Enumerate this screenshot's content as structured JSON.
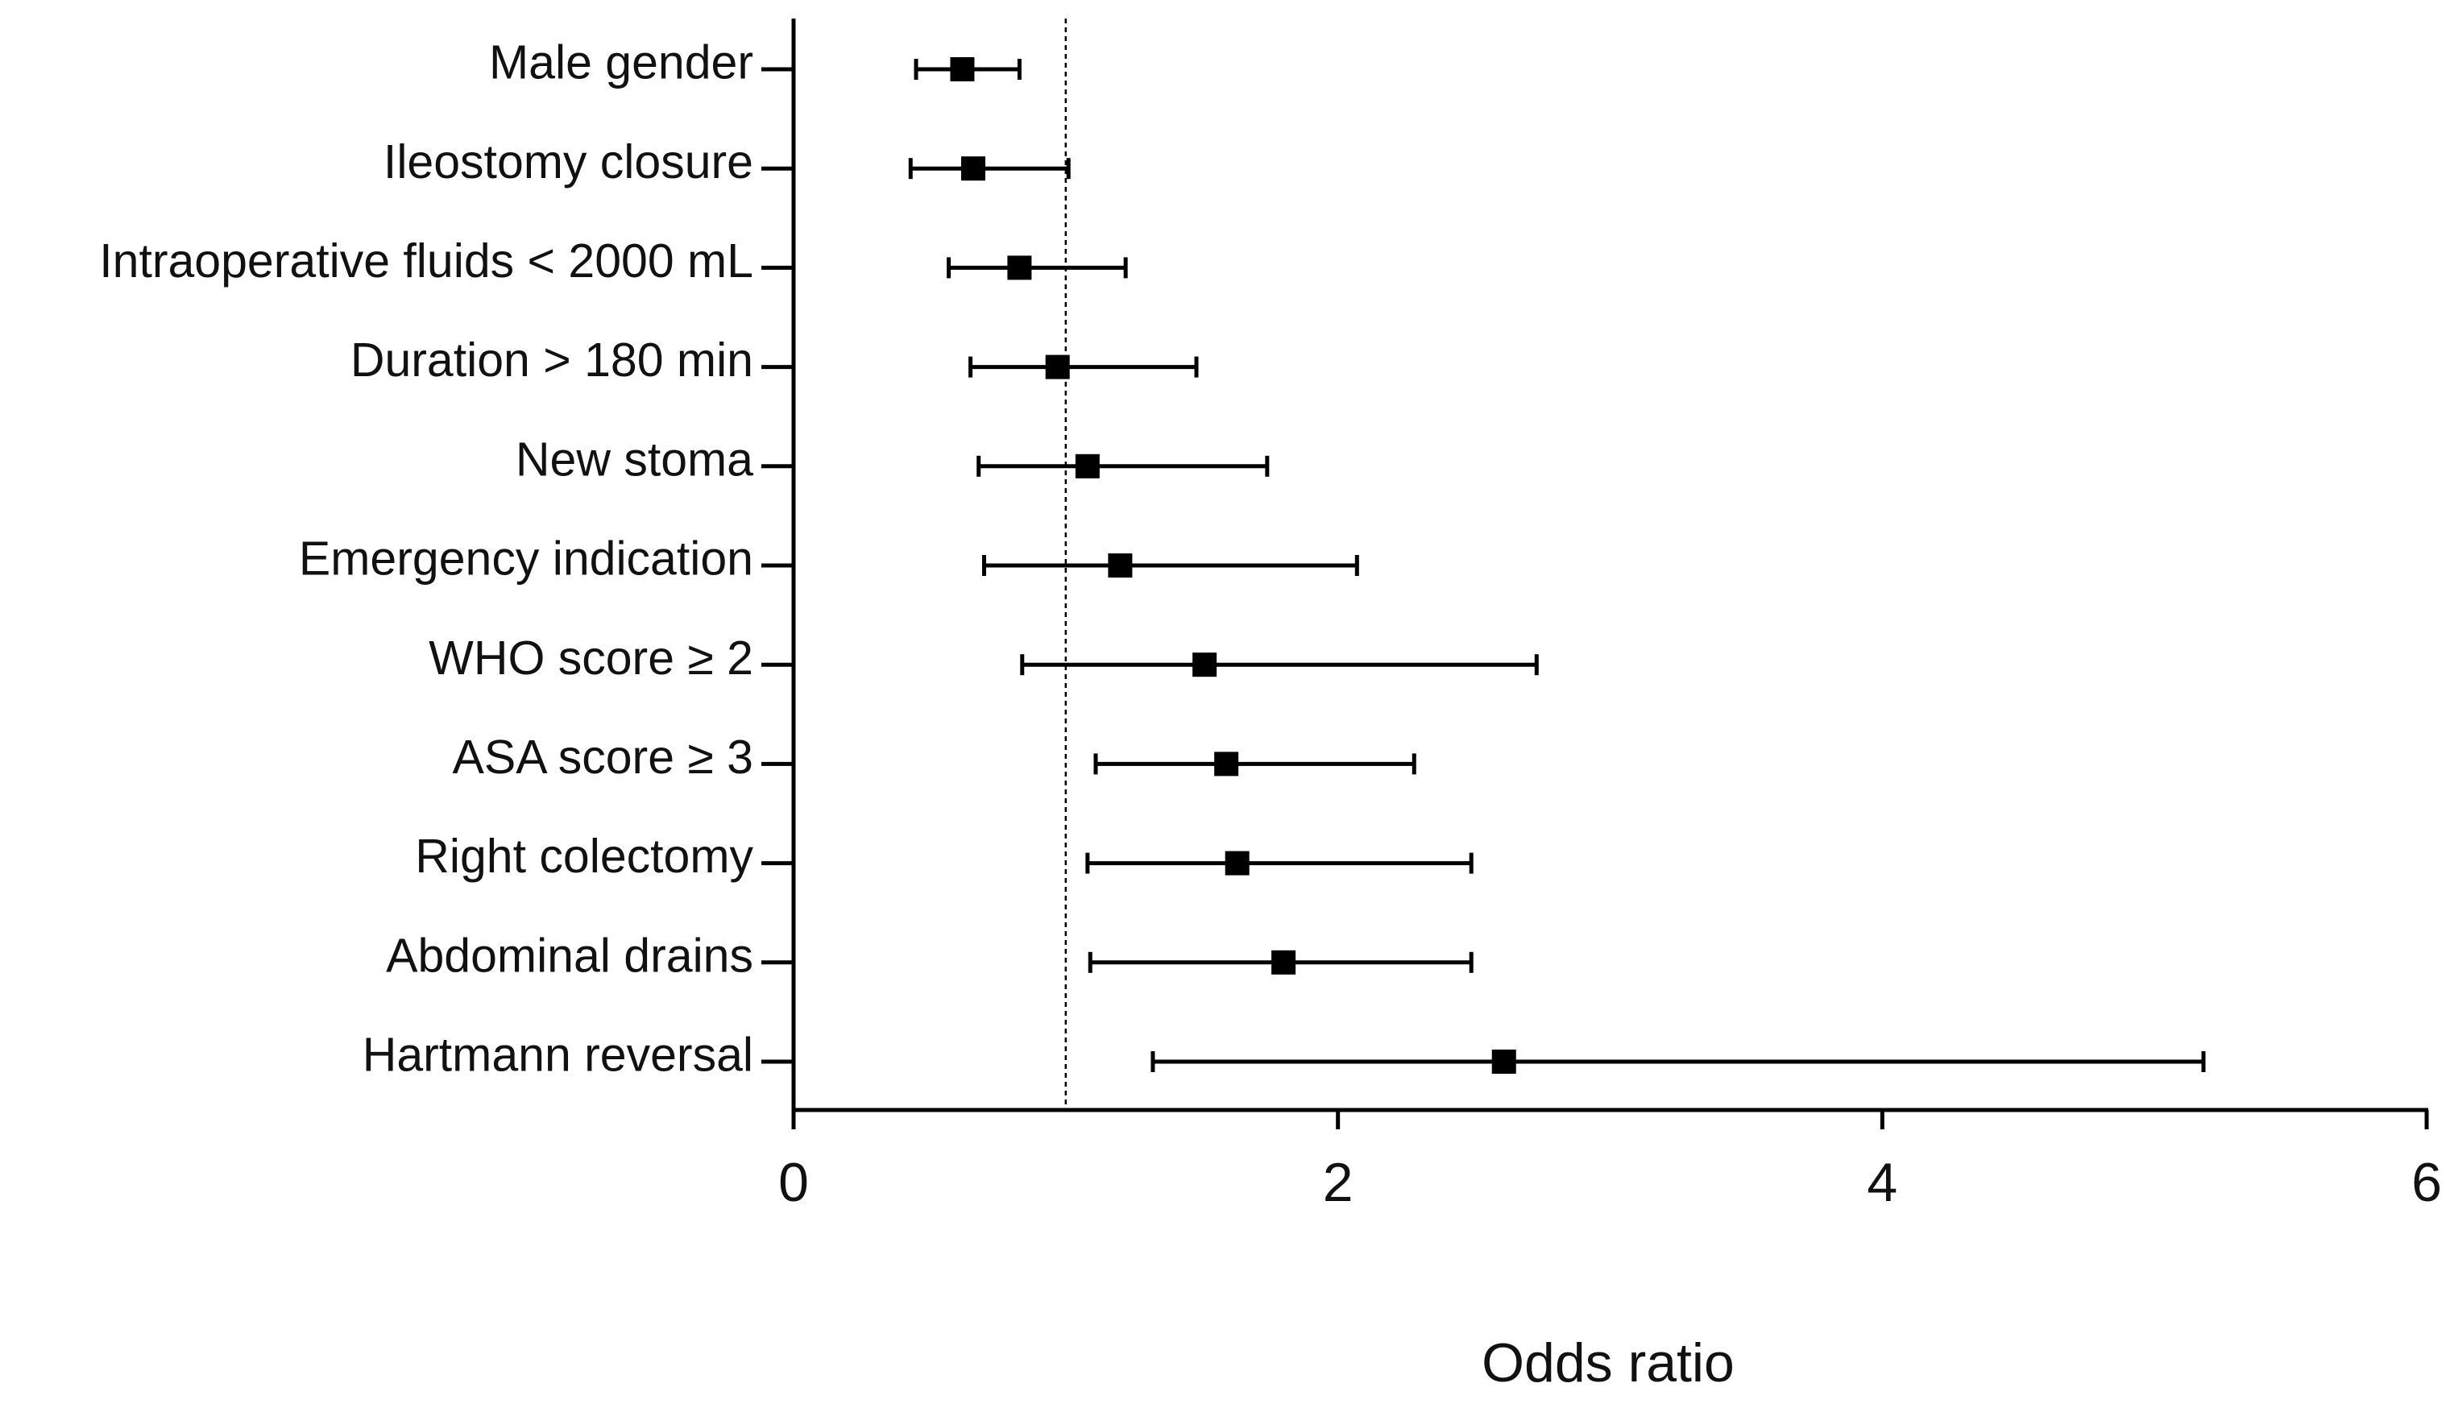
{
  "chart_data": {
    "type": "forest",
    "categories": [
      "Male gender",
      "Ileostomy closure",
      "Intraoperative fluids < 2000 mL",
      "Duration > 180 min",
      "New stoma",
      "Emergency indication",
      "WHO score ≥ 2",
      "ASA score ≥ 3",
      "Right colectomy",
      "Abdominal drains",
      "Hartmann reversal"
    ],
    "values": [
      0.62,
      0.66,
      0.83,
      0.97,
      1.08,
      1.2,
      1.51,
      1.59,
      1.63,
      1.8,
      2.61
    ],
    "lower": [
      0.45,
      0.43,
      0.57,
      0.65,
      0.68,
      0.7,
      0.84,
      1.11,
      1.08,
      1.09,
      1.32
    ],
    "upper": [
      0.83,
      1.01,
      1.22,
      1.48,
      1.74,
      2.07,
      2.73,
      2.28,
      2.49,
      2.49,
      5.18
    ],
    "color": "#000000",
    "reference_line": 1,
    "xlabel": "Odds ratio",
    "xlim": [
      0,
      6
    ],
    "xticks": [
      0,
      2,
      4,
      6
    ]
  }
}
